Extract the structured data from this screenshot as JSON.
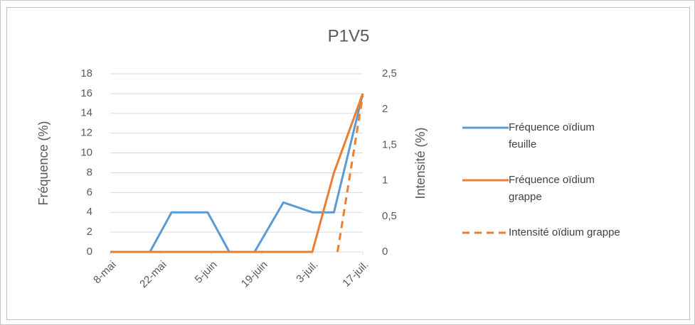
{
  "chart_data": {
    "type": "line",
    "title": "P1V5",
    "y_label": "Fréquence (%)",
    "y2_label": "Intensité (%)",
    "xlim": [
      0,
      70
    ],
    "xticks": [
      {
        "value": 0,
        "label": "8-mai"
      },
      {
        "value": 14,
        "label": "22-mai"
      },
      {
        "value": 28,
        "label": "5-juin"
      },
      {
        "value": 42,
        "label": "19-juin"
      },
      {
        "value": 56,
        "label": "3-juil."
      },
      {
        "value": 70,
        "label": "17-juil."
      }
    ],
    "ylim": [
      0,
      18
    ],
    "yticks": [
      0,
      2,
      4,
      6,
      8,
      10,
      12,
      14,
      16,
      18
    ],
    "y2lim": [
      0,
      2.5
    ],
    "y2ticks": [
      0,
      {
        "value": 0.5,
        "label": "0,5"
      },
      1,
      {
        "value": 1.5,
        "label": "1,5"
      },
      2,
      {
        "value": 2.5,
        "label": "2,5"
      }
    ],
    "grid": true,
    "legend": "right",
    "series": [
      {
        "name": "Fréquence oïdium feuille",
        "color": "#5b9bd5",
        "dash": false,
        "x": [
          0,
          11,
          17,
          27,
          33,
          40,
          48,
          56,
          62,
          70
        ],
        "values": [
          0,
          0,
          4,
          4,
          0,
          0,
          5,
          4,
          4,
          16
        ]
      },
      {
        "name": "Fréquence oïdium grappe",
        "color": "#ed7d31",
        "dash": false,
        "x": [
          0,
          11,
          17,
          27,
          33,
          40,
          48,
          56,
          62,
          70
        ],
        "values": [
          0,
          0,
          0,
          0,
          0,
          0,
          0,
          0,
          8,
          16
        ]
      },
      {
        "name": "Intensité oïdium grappe",
        "color": "#ed7d31",
        "dash": true,
        "axis": "y2",
        "x": [
          63,
          70
        ],
        "values": [
          0,
          2.2
        ]
      }
    ]
  }
}
